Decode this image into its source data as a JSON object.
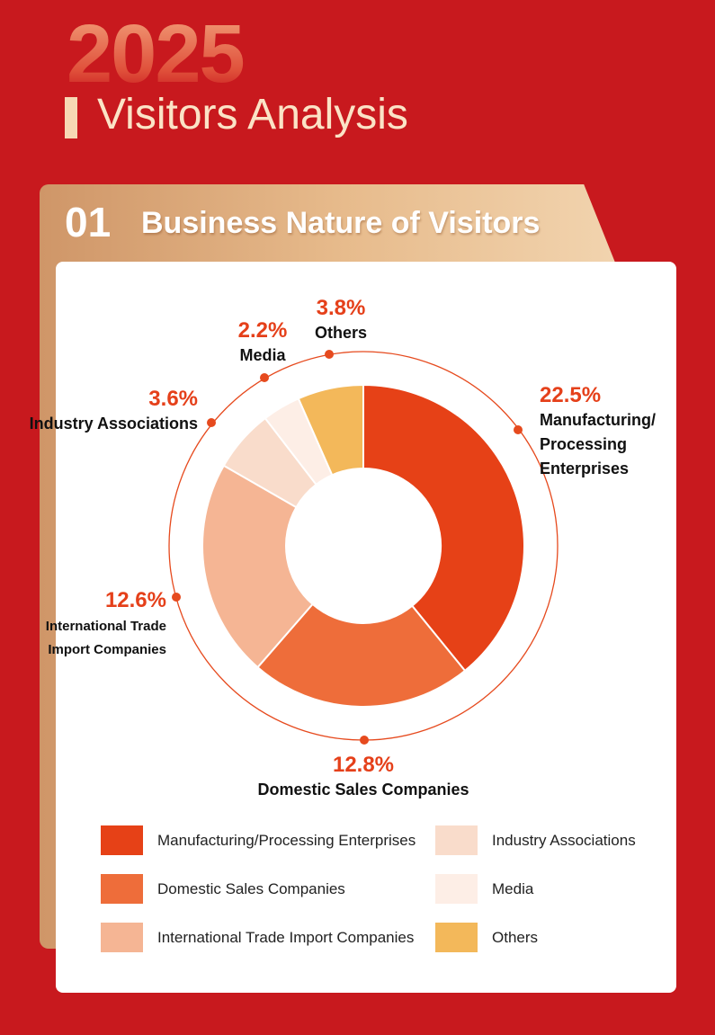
{
  "header": {
    "year": "2025",
    "title": "Visitors Analysis"
  },
  "section": {
    "number": "01",
    "title": "Business Nature of Visitors"
  },
  "colors": {
    "background": "#c8191e",
    "label_percent": "#e5401a",
    "ring": "#e64a1e"
  },
  "chart_data": {
    "type": "pie",
    "title": "Business Nature of Visitors",
    "slices": [
      {
        "label": "Manufacturing/Processing Enterprises",
        "value": 22.5,
        "value_label": "22.5%",
        "callout_lines": [
          "Manufacturing/",
          "Processing",
          "Enterprises"
        ],
        "color": "#e64117"
      },
      {
        "label": "Domestic Sales Companies",
        "value": 12.8,
        "value_label": "12.8%",
        "callout_lines": [
          "Domestic Sales Companies"
        ],
        "color": "#ee6d3a"
      },
      {
        "label": "International Trade Import Companies",
        "value": 12.6,
        "value_label": "12.6%",
        "callout_lines": [
          "International Trade",
          "Import Companies"
        ],
        "color": "#f5b594"
      },
      {
        "label": "Industry Associations",
        "value": 3.6,
        "value_label": "3.6%",
        "callout_lines": [
          "Industry Associations"
        ],
        "color": "#f9dccb"
      },
      {
        "label": "Media",
        "value": 2.2,
        "value_label": "2.2%",
        "callout_lines": [
          "Media"
        ],
        "color": "#fdeee6"
      },
      {
        "label": "Others",
        "value": 3.8,
        "value_label": "3.8%",
        "callout_lines": [
          "Others"
        ],
        "color": "#f3b85a"
      }
    ],
    "legend": [
      "Manufacturing/Processing Enterprises",
      "Domestic Sales Companies",
      "International Trade Import Companies",
      "Industry Associations",
      "Media",
      "Others"
    ]
  }
}
